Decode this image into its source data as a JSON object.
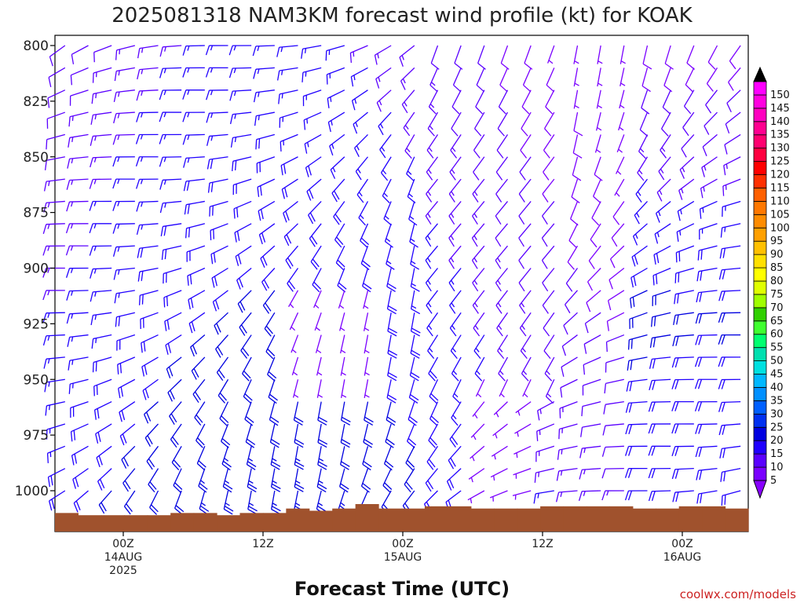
{
  "chart_data": {
    "type": "wind-barb-profile",
    "title": "2025081318 NAM3KM forecast wind profile (kt) for KOAK",
    "xlabel": "Forecast Time (UTC)",
    "credit": "coolwx.com/models",
    "units": "kt",
    "y_axis": {
      "label": "",
      "ticks": [
        800,
        825,
        850,
        875,
        900,
        925,
        950,
        975,
        1000
      ],
      "range": [
        1020,
        795
      ]
    },
    "x_axis": {
      "range_hours": [
        -6,
        54
      ],
      "ticks": [
        {
          "hour": 0,
          "lines": [
            "00Z",
            "14AUG",
            "2025"
          ]
        },
        {
          "hour": 12,
          "lines": [
            "12Z"
          ]
        },
        {
          "hour": 24,
          "lines": [
            "00Z",
            "15AUG"
          ]
        },
        {
          "hour": 36,
          "lines": [
            "12Z"
          ]
        },
        {
          "hour": 48,
          "lines": [
            "00Z",
            "16AUG"
          ]
        }
      ]
    },
    "colorbar": {
      "levels": [
        "5",
        "10",
        "15",
        "20",
        "25",
        "30",
        "35",
        "40",
        "45",
        "50",
        "55",
        "60",
        "65",
        "70",
        "75",
        "80",
        "85",
        "90",
        "95",
        "100",
        "105",
        "110",
        "115",
        "120",
        "125",
        "130",
        "135",
        "140",
        "145",
        "150"
      ],
      "colors": [
        "#7a00ff",
        "#5a00ff",
        "#2000ff",
        "#0000e0",
        "#0030f0",
        "#0060ff",
        "#0090ff",
        "#00b8ff",
        "#00e0e0",
        "#00e0b0",
        "#00ff70",
        "#40ff30",
        "#30d000",
        "#a0ff00",
        "#e0ff00",
        "#ffff00",
        "#ffe000",
        "#ffc000",
        "#ffa000",
        "#ff8c00",
        "#ff7800",
        "#ff6000",
        "#ff3000",
        "#ff0000",
        "#ff0040",
        "#ff0070",
        "#ff0090",
        "#ff00c0",
        "#ff00e0",
        "#ff00ff"
      ],
      "over_color": "#000000",
      "under_color": "#8800ff"
    },
    "terrain_color": "#a0522d",
    "terrain_pressure": [
      1010,
      1011,
      1011,
      1011,
      1011,
      1010,
      1010,
      1011,
      1010,
      1010,
      1008,
      1009,
      1008,
      1006,
      1008,
      1008,
      1007,
      1007,
      1008,
      1008,
      1008,
      1007,
      1007,
      1007,
      1007,
      1008,
      1008,
      1007,
      1007,
      1008
    ]
  }
}
